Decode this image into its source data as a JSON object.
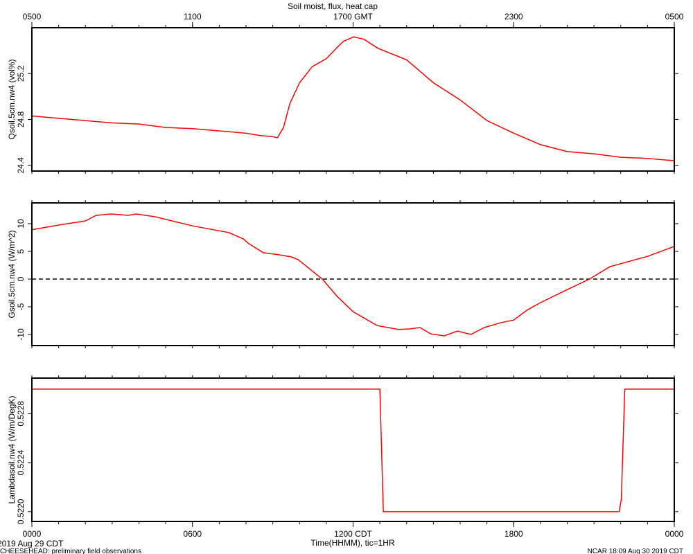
{
  "title": "Soil moist, flux, heat cap",
  "x_label": "Time(HHMM), tic=1HR",
  "date_label": "2019 Aug 29 CDT",
  "footer_left": "CHEESEHEAD: preliminary field observations",
  "footer_right": "NCAR 18:09 Aug 30 2019 CDT",
  "chart_data": [
    {
      "type": "line",
      "ylabel": "Qsoil.5cm.nw4 (vol%)",
      "color": "#ff0000",
      "xlim": [
        0,
        24
      ],
      "minor_xtick_step": 1,
      "top_xticks": [
        {
          "value": 0,
          "label": "0500"
        },
        {
          "value": 6,
          "label": "1100"
        },
        {
          "value": 12,
          "label": "1700 GMT"
        },
        {
          "value": 18,
          "label": "2300"
        },
        {
          "value": 24,
          "label": "0500"
        }
      ],
      "ylim": [
        24.35,
        25.6
      ],
      "yticks": [
        24.4,
        24.8,
        25.2
      ],
      "x": [
        0,
        1,
        2,
        3,
        4,
        5,
        6,
        7,
        8,
        8.5,
        9,
        9.17,
        9.4,
        9.64,
        10,
        10.47,
        11,
        11.37,
        11.63,
        12.02,
        12.4,
        12.93,
        14,
        15,
        16,
        17,
        18,
        19,
        20,
        21,
        22,
        23,
        24
      ],
      "values": [
        24.83,
        24.81,
        24.79,
        24.77,
        24.76,
        24.73,
        24.72,
        24.7,
        24.68,
        24.66,
        24.65,
        24.64,
        24.73,
        24.94,
        25.12,
        25.26,
        25.33,
        25.42,
        25.48,
        25.52,
        25.5,
        25.42,
        25.32,
        25.12,
        24.97,
        24.79,
        24.68,
        24.58,
        24.52,
        24.5,
        24.47,
        24.46,
        24.44
      ]
    },
    {
      "type": "line",
      "ylabel": "Gsoil.5cm.nw4 (W/m^2)",
      "color": "#ff0000",
      "xlim": [
        0,
        24
      ],
      "minor_xtick_step": 1,
      "ylim": [
        -12,
        13.75
      ],
      "yticks": [
        -10,
        -5,
        0,
        5,
        10
      ],
      "reference_line": 0,
      "x": [
        0,
        1,
        2,
        2.4,
        2.95,
        3.6,
        3.9,
        4.6,
        6,
        7.35,
        7.9,
        8.1,
        8.65,
        9.2,
        9.7,
        9.95,
        10.85,
        11.4,
        12,
        12.9,
        13.7,
        14.1,
        14.5,
        14.9,
        15.4,
        15.9,
        16.4,
        16.9,
        17.5,
        18,
        18.5,
        19,
        20,
        20.83,
        21.6,
        23,
        24
      ],
      "values": [
        8.9,
        9.75,
        10.5,
        11.5,
        11.75,
        11.5,
        11.75,
        11.25,
        9.6,
        8.4,
        7.25,
        6.4,
        4.75,
        4.4,
        4.0,
        3.5,
        0,
        -3.1,
        -5.9,
        -8.4,
        -9.1,
        -9,
        -8.75,
        -9.9,
        -10.25,
        -9.4,
        -10,
        -8.75,
        -7.9,
        -7.4,
        -5.6,
        -4.25,
        -1.9,
        0,
        2.25,
        4.1,
        5.9
      ]
    },
    {
      "type": "line",
      "ylabel": "Lambdasoil.nw4 (W/m/DegK)",
      "color": "#ff0000",
      "xlim": [
        0,
        24
      ],
      "minor_xtick_step": 1,
      "xticks": [
        {
          "value": 0,
          "label": "0000"
        },
        {
          "value": 6,
          "label": "0600"
        },
        {
          "value": 12,
          "label": "1200 CDT"
        },
        {
          "value": 18,
          "label": "1800"
        },
        {
          "value": 24,
          "label": "0000"
        }
      ],
      "ylim": [
        0.52192,
        0.52309
      ],
      "yticks": [
        {
          "value": 0.522,
          "label": "0.5220"
        },
        {
          "value": 0.5224,
          "label": "0.5224"
        },
        {
          "value": 0.5228,
          "label": "0.5228"
        }
      ],
      "x": [
        0,
        13.0,
        13.13,
        21.94,
        22.02,
        22.15,
        24
      ],
      "values": [
        0.523,
        0.523,
        0.522,
        0.522,
        0.5221,
        0.523,
        0.523
      ]
    }
  ]
}
